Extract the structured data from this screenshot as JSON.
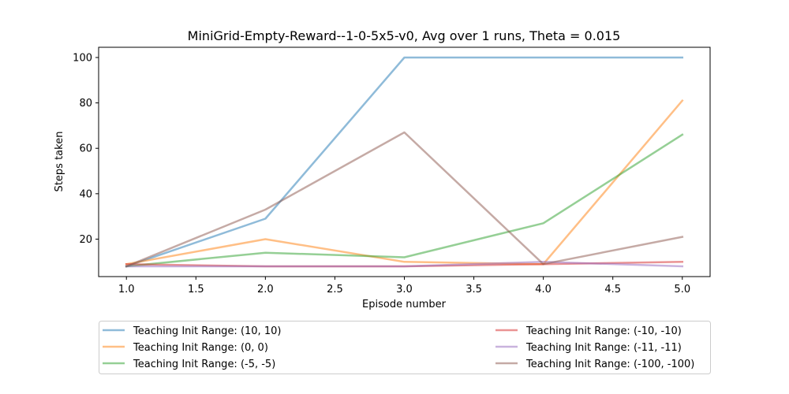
{
  "chart_data": {
    "type": "line",
    "title": "MiniGrid-Empty-Reward--1-0-5x5-v0, Avg over 1 runs, Theta = 0.015",
    "xlabel": "Episode number",
    "ylabel": "Steps taken",
    "x": [
      1,
      2,
      3,
      4,
      5
    ],
    "xlim": [
      0.8,
      5.2
    ],
    "ylim": [
      3.5,
      104.5
    ],
    "xticks": [
      "1.0",
      "1.5",
      "2.0",
      "2.5",
      "3.0",
      "3.5",
      "4.0",
      "4.5",
      "5.0"
    ],
    "yticks": [
      "20",
      "40",
      "60",
      "80",
      "100"
    ],
    "grid": false,
    "legend_position": "below",
    "series": [
      {
        "name": "Teaching Init Range: (10, 10)",
        "color": "#1f77b4",
        "values": [
          8,
          29,
          100,
          100,
          100
        ]
      },
      {
        "name": "Teaching Init Range: (0, 0)",
        "color": "#ff7f0e",
        "values": [
          9,
          20,
          10,
          9,
          81
        ]
      },
      {
        "name": "Teaching Init Range: (-5, -5)",
        "color": "#2ca02c",
        "values": [
          8,
          14,
          12,
          27,
          66
        ]
      },
      {
        "name": "Teaching Init Range: (-10, -10)",
        "color": "#d62728",
        "values": [
          9,
          8,
          8,
          9,
          10
        ]
      },
      {
        "name": "Teaching Init Range: (-11, -11)",
        "color": "#9467bd",
        "values": [
          8,
          8,
          8,
          10,
          8
        ]
      },
      {
        "name": "Teaching Init Range: (-100, -100)",
        "color": "#8c564b",
        "values": [
          8,
          33,
          67,
          9,
          21
        ]
      }
    ]
  }
}
